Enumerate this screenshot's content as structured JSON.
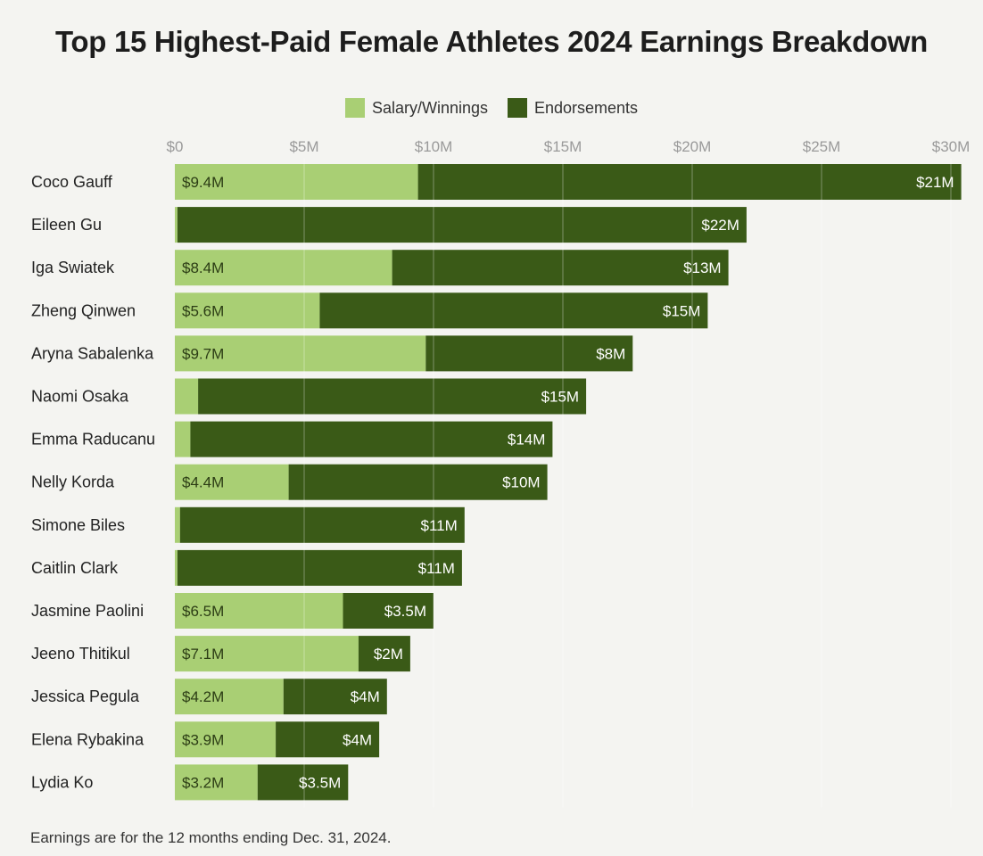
{
  "colors": {
    "salary": "#a9cf74",
    "endorsements": "#3a5a17",
    "grid": "#ffffff",
    "tick": "#9a9a9a"
  },
  "chart_data": {
    "type": "bar",
    "orientation": "horizontal",
    "stacked": true,
    "title": "Top 15 Highest-Paid Female Athletes 2024 Earnings Breakdown",
    "legend": {
      "placement": "top-center"
    },
    "xlim": [
      0,
      31
    ],
    "ticks": [
      0,
      5,
      10,
      15,
      20,
      25,
      30
    ],
    "tick_labels": [
      "$0",
      "$5M",
      "$10M",
      "$15M",
      "$20M",
      "$25M",
      "$30M"
    ],
    "grid": true,
    "categories": [
      "Coco Gauff",
      "Eileen Gu",
      "Iga Swiatek",
      "Zheng Qinwen",
      "Aryna Sabalenka",
      "Naomi Osaka",
      "Emma Raducanu",
      "Nelly Korda",
      "Simone Biles",
      "Caitlin Clark",
      "Jasmine Paolini",
      "Jeeno Thitikul",
      "Jessica Pegula",
      "Elena Rybakina",
      "Lydia Ko"
    ],
    "series": [
      {
        "name": "Salary/Winnings",
        "values": [
          9.4,
          0.1,
          8.4,
          5.6,
          9.7,
          0.9,
          0.6,
          4.4,
          0.2,
          0.1,
          6.5,
          7.1,
          4.2,
          3.9,
          3.2
        ],
        "labels": [
          "$9.4M",
          "",
          "$8.4M",
          "$5.6M",
          "$9.7M",
          "",
          "",
          "$4.4M",
          "",
          "",
          "$6.5M",
          "$7.1M",
          "$4.2M",
          "$3.9M",
          "$3.2M"
        ]
      },
      {
        "name": "Endorsements",
        "values": [
          21,
          22,
          13,
          15,
          8,
          15,
          14,
          10,
          11,
          11,
          3.5,
          2,
          4,
          4,
          3.5
        ],
        "labels": [
          "$21M",
          "$22M",
          "$13M",
          "$15M",
          "$8M",
          "$15M",
          "$14M",
          "$10M",
          "$11M",
          "$11M",
          "$3.5M",
          "$2M",
          "$4M",
          "$4M",
          "$3.5M"
        ]
      }
    ]
  },
  "footnote": "Earnings are for the 12 months ending Dec. 31, 2024."
}
